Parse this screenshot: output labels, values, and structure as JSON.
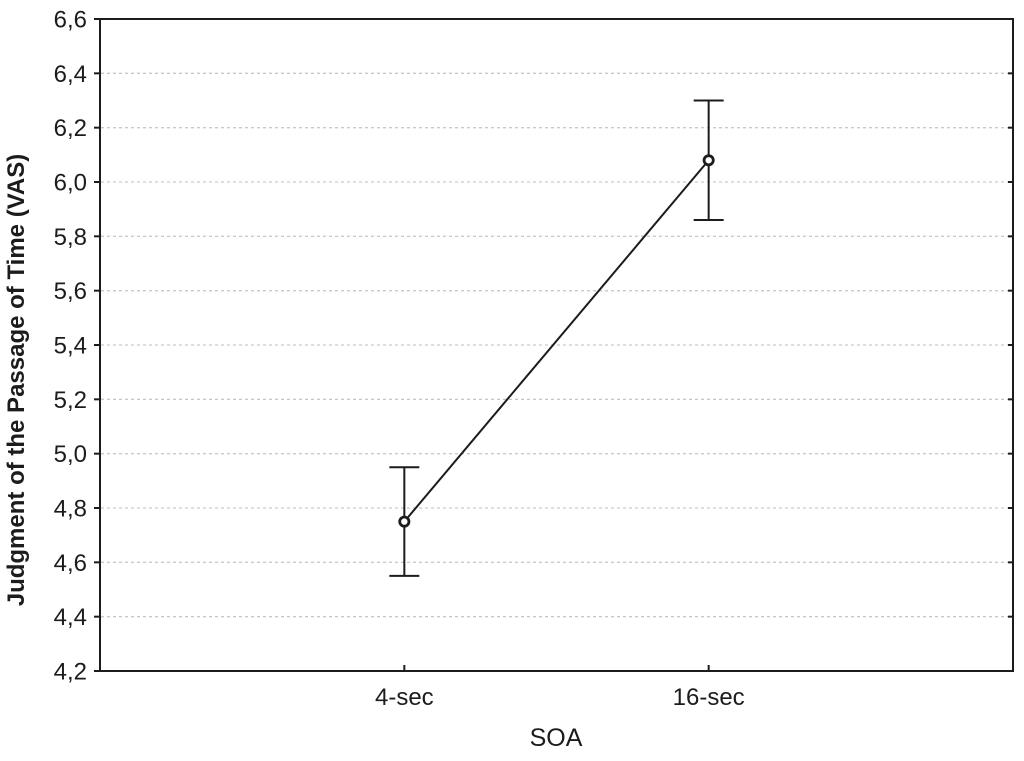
{
  "chart_data": {
    "type": "line",
    "title": "",
    "xlabel": "SOA",
    "ylabel": "Judgment of the Passage of Time (VAS)",
    "categories": [
      "4-sec",
      "16-sec"
    ],
    "series": [
      {
        "name": "Judgment of the Passage of Time (VAS)",
        "values": [
          4.75,
          6.08
        ],
        "error_low": [
          4.55,
          5.86
        ],
        "error_high": [
          4.95,
          6.3
        ]
      }
    ],
    "ylim": [
      4.2,
      6.6
    ],
    "ytick_step": 0.2,
    "ytick_labels": [
      "6,6",
      "6,4",
      "6,2",
      "6,0",
      "5,8",
      "5,6",
      "5,4",
      "5,2",
      "5,0",
      "4,8",
      "4,6",
      "4,4",
      "4,2"
    ],
    "decimal_separator": "comma",
    "grid": "horizontal-dashed",
    "legend": "none",
    "marker": "open-circle",
    "error_bars": "caps",
    "colors": {
      "foreground": "#1c1c1c",
      "grid": "#c9c9c9",
      "background": "#ffffff",
      "marker_fill": "#ffffff"
    }
  }
}
